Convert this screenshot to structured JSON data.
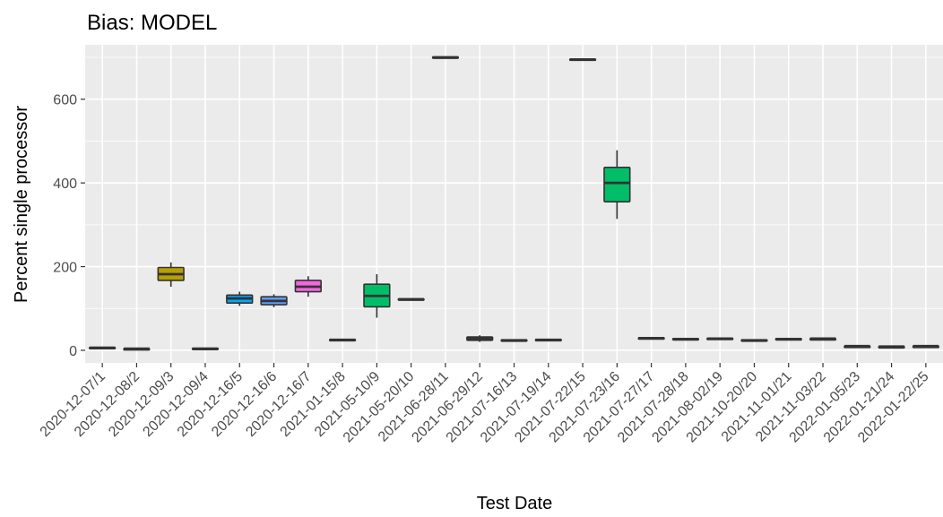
{
  "chart_data": {
    "type": "boxplot",
    "title": "Bias: MODEL",
    "xlabel": "Test Date",
    "ylabel": "Percent single processor",
    "ylim": [
      -30,
      730
    ],
    "yticks": [
      0,
      200,
      400,
      600
    ],
    "grid": true,
    "legend": "none",
    "categories": [
      "2020-12-07/1",
      "2020-12-08/2",
      "2020-12-09/3",
      "2020-12-09/4",
      "2020-12-16/5",
      "2020-12-16/6",
      "2020-12-16/7",
      "2021-01-15/8",
      "2021-05-10/9",
      "2021-05-20/10",
      "2021-06-28/11",
      "2021-06-29/12",
      "2021-07-16/13",
      "2021-07-19/14",
      "2021-07-22/15",
      "2021-07-23/16",
      "2021-07-27/17",
      "2021-07-28/18",
      "2021-08-02/19",
      "2021-10-20/20",
      "2021-11-01/21",
      "2021-11-03/22",
      "2022-01-05/23",
      "2022-01-21/24",
      "2022-01-22/25"
    ],
    "boxes": [
      {
        "min": 5,
        "q1": 5,
        "median": 6,
        "q3": 7,
        "max": 7,
        "color": "#f8766d"
      },
      {
        "min": 3,
        "q1": 3,
        "median": 4,
        "q3": 4,
        "max": 5,
        "color": "#e7851e"
      },
      {
        "min": 152,
        "q1": 167,
        "median": 182,
        "q3": 198,
        "max": 210,
        "color": "#b79f00"
      },
      {
        "min": 3,
        "q1": 4,
        "median": 4,
        "q3": 5,
        "max": 5,
        "color": "#7cae00"
      },
      {
        "min": 106,
        "q1": 113,
        "median": 124,
        "q3": 132,
        "max": 140,
        "color": "#00a9ff"
      },
      {
        "min": 103,
        "q1": 109,
        "median": 118,
        "q3": 128,
        "max": 134,
        "color": "#619cff"
      },
      {
        "min": 128,
        "q1": 140,
        "median": 152,
        "q3": 167,
        "max": 177,
        "color": "#f564e3"
      },
      {
        "min": 24,
        "q1": 25,
        "median": 25,
        "q3": 26,
        "max": 26,
        "color": "#00be67"
      },
      {
        "min": 78,
        "q1": 104,
        "median": 130,
        "q3": 158,
        "max": 182,
        "color": "#00be67"
      },
      {
        "min": 120,
        "q1": 121,
        "median": 122,
        "q3": 123,
        "max": 124,
        "color": "#00be67"
      },
      {
        "min": 698,
        "q1": 699,
        "median": 700,
        "q3": 701,
        "max": 702,
        "color": "#00be67"
      },
      {
        "min": 20,
        "q1": 24,
        "median": 28,
        "q3": 32,
        "max": 36,
        "color": "#00be67"
      },
      {
        "min": 22,
        "q1": 23,
        "median": 24,
        "q3": 25,
        "max": 26,
        "color": "#00be67"
      },
      {
        "min": 24,
        "q1": 24,
        "median": 25,
        "q3": 26,
        "max": 27,
        "color": "#00be67"
      },
      {
        "min": 692,
        "q1": 694,
        "median": 695,
        "q3": 696,
        "max": 697,
        "color": "#00be67"
      },
      {
        "min": 314,
        "q1": 355,
        "median": 400,
        "q3": 437,
        "max": 478,
        "color": "#00be67"
      },
      {
        "min": 28,
        "q1": 29,
        "median": 29,
        "q3": 30,
        "max": 31,
        "color": "#00be67"
      },
      {
        "min": 26,
        "q1": 26,
        "median": 27,
        "q3": 28,
        "max": 28,
        "color": "#00be67"
      },
      {
        "min": 27,
        "q1": 27,
        "median": 28,
        "q3": 29,
        "max": 29,
        "color": "#00be67"
      },
      {
        "min": 23,
        "q1": 23,
        "median": 24,
        "q3": 25,
        "max": 25,
        "color": "#00be67"
      },
      {
        "min": 26,
        "q1": 26,
        "median": 27,
        "q3": 28,
        "max": 28,
        "color": "#00be67"
      },
      {
        "min": 27,
        "q1": 27,
        "median": 28,
        "q3": 28,
        "max": 29,
        "color": "#00be67"
      },
      {
        "min": 9,
        "q1": 9,
        "median": 10,
        "q3": 10,
        "max": 11,
        "color": "#00be67"
      },
      {
        "min": 8,
        "q1": 8,
        "median": 9,
        "q3": 9,
        "max": 10,
        "color": "#00be67"
      },
      {
        "min": 9,
        "q1": 9,
        "median": 10,
        "q3": 10,
        "max": 11,
        "color": "#00be67"
      }
    ]
  }
}
